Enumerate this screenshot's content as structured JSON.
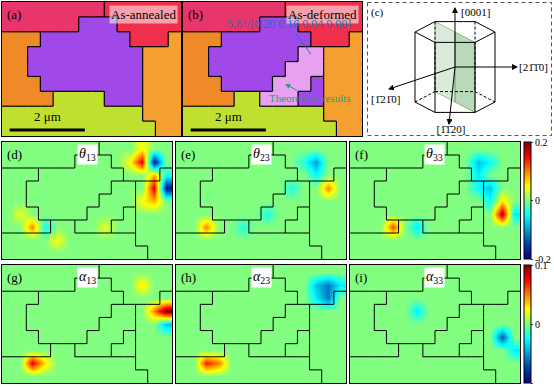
{
  "chart_data": [
    {
      "type": "map",
      "panel": "(a)",
      "title": "As-annealed",
      "tick_labels": false,
      "cell_size_um": 0.34,
      "colors": [
        "#e8366a",
        "#f0304a",
        "#f08a28",
        "#a048e8",
        "#c0e030",
        "#f4a030",
        "#e8a0f0"
      ],
      "grains": [
        [
          0,
          0,
          0,
          0,
          0,
          0,
          0,
          0,
          1,
          1,
          1,
          1,
          1,
          1
        ],
        [
          0,
          0,
          0,
          0,
          0,
          0,
          3,
          3,
          3,
          1,
          1,
          1,
          1,
          1
        ],
        [
          2,
          2,
          2,
          3,
          3,
          3,
          3,
          3,
          3,
          3,
          1,
          1,
          1,
          5
        ],
        [
          2,
          2,
          3,
          3,
          3,
          3,
          3,
          3,
          3,
          3,
          3,
          5,
          5,
          5
        ],
        [
          2,
          2,
          3,
          3,
          3,
          3,
          3,
          3,
          3,
          3,
          3,
          5,
          5,
          5
        ],
        [
          2,
          2,
          2,
          3,
          3,
          3,
          3,
          3,
          3,
          3,
          3,
          5,
          5,
          5
        ],
        [
          2,
          2,
          2,
          2,
          4,
          4,
          4,
          4,
          3,
          3,
          3,
          5,
          5,
          5
        ],
        [
          4,
          4,
          4,
          4,
          4,
          4,
          4,
          4,
          4,
          4,
          4,
          5,
          5,
          5
        ],
        [
          4,
          4,
          4,
          4,
          4,
          4,
          4,
          4,
          4,
          4,
          4,
          4,
          5,
          5
        ]
      ],
      "scale_bar": {
        "length": 2,
        "label": "2 μm"
      }
    },
    {
      "type": "map",
      "panel": "(b)",
      "title": "As-deformed",
      "tick_labels": false,
      "cell_size_um": 0.34,
      "colors": [
        "#e8366a",
        "#f0304a",
        "#f08a28",
        "#a048e8",
        "#c0e030",
        "#f4a030",
        "#e8a0f0"
      ],
      "grains": [
        [
          0,
          0,
          0,
          0,
          0,
          0,
          0,
          0,
          1,
          1,
          1,
          1,
          1,
          1
        ],
        [
          0,
          0,
          0,
          0,
          0,
          0,
          3,
          3,
          3,
          1,
          1,
          1,
          1,
          1
        ],
        [
          2,
          2,
          2,
          3,
          3,
          3,
          3,
          3,
          3,
          3,
          1,
          1,
          1,
          5
        ],
        [
          2,
          2,
          3,
          3,
          3,
          3,
          3,
          3,
          3,
          6,
          6,
          5,
          5,
          5
        ],
        [
          2,
          2,
          3,
          3,
          3,
          3,
          3,
          3,
          6,
          6,
          6,
          5,
          5,
          5
        ],
        [
          2,
          2,
          2,
          3,
          3,
          3,
          3,
          6,
          6,
          6,
          3,
          5,
          5,
          5
        ],
        [
          2,
          2,
          2,
          2,
          4,
          4,
          6,
          6,
          6,
          3,
          3,
          5,
          5,
          5
        ],
        [
          4,
          4,
          4,
          4,
          4,
          4,
          4,
          4,
          4,
          4,
          4,
          5,
          5,
          5
        ],
        [
          4,
          4,
          4,
          4,
          4,
          4,
          4,
          4,
          4,
          4,
          4,
          4,
          5,
          5
        ]
      ],
      "scale_bar": {
        "length": 2,
        "label": "2 μm"
      },
      "annotations": [
        "5.6°/[0.20 0.16 0.04 0.00]",
        "Theoretical results"
      ]
    },
    {
      "type": "diagram",
      "panel": "(c)",
      "directions": [
        "[0001]",
        "[21̄1̄0]",
        "[1̄21̄0]",
        "[1̄1̄20]"
      ]
    },
    {
      "type": "heatmap",
      "panel": "(d)",
      "symbol": "θ",
      "index": "13",
      "tick_labels": false,
      "zlim": [
        -0.2,
        0.2
      ],
      "zticks": [
        0.2,
        0,
        -0.2
      ],
      "z": [
        [
          0,
          0,
          0,
          0,
          0,
          0,
          0,
          0,
          0,
          0,
          0,
          0.05,
          0,
          0
        ],
        [
          0,
          0,
          0,
          0,
          0,
          0,
          0,
          0,
          0,
          0,
          0.05,
          0.16,
          -0.18,
          0
        ],
        [
          0,
          0,
          0,
          0,
          0,
          0,
          0,
          0,
          0,
          0,
          0,
          0,
          0.08,
          -0.04
        ],
        [
          0,
          0,
          0,
          0,
          0,
          0,
          0,
          0,
          0,
          0,
          0,
          0,
          0.16,
          -0.18
        ],
        [
          0,
          0,
          0,
          0,
          0,
          0,
          0,
          0,
          0,
          0,
          0,
          0.05,
          0.08,
          0
        ],
        [
          0,
          0.04,
          0,
          0,
          0,
          0,
          0,
          0,
          0,
          0,
          0,
          0,
          0,
          0
        ],
        [
          0,
          0,
          0.1,
          -0.05,
          0,
          0,
          0,
          0,
          0.04,
          0,
          0,
          0,
          0,
          0
        ],
        [
          0,
          0,
          0,
          0,
          0.05,
          0,
          0,
          0,
          0,
          0,
          0,
          0,
          0,
          0
        ],
        [
          0,
          0,
          0,
          0,
          0,
          0,
          0,
          0,
          0,
          0,
          0,
          0,
          0,
          0
        ]
      ]
    },
    {
      "type": "heatmap",
      "panel": "(e)",
      "symbol": "θ",
      "index": "23",
      "tick_labels": false,
      "zlim": [
        -0.2,
        0.2
      ],
      "zticks": [
        0.2,
        0,
        -0.2
      ],
      "z": [
        [
          0,
          0,
          0,
          0,
          0,
          0,
          0,
          0,
          0,
          0,
          0,
          0,
          0,
          0
        ],
        [
          0,
          0,
          0,
          0,
          0,
          0,
          0,
          0,
          0,
          0,
          -0.04,
          -0.1,
          0,
          0
        ],
        [
          0,
          0,
          0,
          0,
          0,
          0,
          0,
          0,
          0,
          0,
          0,
          -0.05,
          0,
          0
        ],
        [
          0,
          0,
          0,
          0,
          0,
          0,
          0,
          0,
          0,
          -0.04,
          0,
          0,
          0.1,
          0
        ],
        [
          0,
          0,
          0,
          0,
          0,
          0,
          0,
          0,
          0,
          0,
          0,
          0,
          0,
          0
        ],
        [
          0,
          0,
          0,
          0,
          0,
          0,
          0,
          -0.04,
          0,
          0,
          0,
          0,
          0,
          0
        ],
        [
          0,
          0,
          0.1,
          0,
          0,
          -0.04,
          0,
          0,
          0,
          0,
          0,
          0,
          0,
          0
        ],
        [
          0,
          0,
          0,
          0,
          0,
          0,
          0,
          0,
          0,
          0,
          0,
          0,
          0,
          0
        ],
        [
          0,
          0,
          0,
          0,
          0,
          0,
          0,
          0,
          0,
          0,
          0,
          0,
          0,
          0
        ]
      ]
    },
    {
      "type": "heatmap",
      "panel": "(f)",
      "symbol": "θ",
      "index": "33",
      "tick_labels": false,
      "zlim": [
        -0.2,
        0.2
      ],
      "zticks": [
        0.2,
        0,
        -0.2
      ],
      "z": [
        [
          0,
          0,
          0,
          0,
          0,
          0,
          0,
          0,
          0,
          0,
          0,
          0,
          0,
          0
        ],
        [
          0,
          0,
          0,
          0,
          0,
          0,
          0,
          0,
          0,
          0,
          -0.08,
          -0.05,
          0,
          0
        ],
        [
          0,
          0,
          0,
          0,
          0,
          0,
          0,
          0,
          0,
          0,
          -0.06,
          0,
          0,
          0
        ],
        [
          0,
          0,
          0,
          0,
          0,
          0,
          0,
          0,
          0,
          0,
          -0.05,
          -0.08,
          0,
          0
        ],
        [
          0,
          0,
          0,
          0,
          0,
          0,
          0,
          0,
          0,
          0,
          0,
          -0.05,
          0.06,
          0
        ],
        [
          0,
          0,
          0,
          0,
          0,
          0,
          0,
          0,
          0,
          0,
          0,
          0,
          0.18,
          -0.06
        ],
        [
          0,
          0,
          0,
          0.12,
          0,
          -0.06,
          0,
          0,
          0,
          0,
          0,
          0,
          0,
          0
        ],
        [
          0,
          0,
          0,
          0,
          0,
          0,
          0,
          0,
          0,
          0,
          0,
          0,
          0,
          0
        ],
        [
          0,
          0,
          0,
          0,
          0,
          0,
          0,
          0,
          0,
          0,
          0,
          0,
          0,
          0
        ]
      ]
    },
    {
      "type": "heatmap",
      "panel": "(g)",
      "symbol": "α",
      "index": "13",
      "tick_labels": false,
      "zlim": [
        -0.1,
        0.1
      ],
      "zticks": [
        0.1,
        0,
        -0.1
      ],
      "z": [
        [
          0,
          0,
          0,
          0,
          0,
          0,
          0,
          0,
          0,
          0,
          0,
          0,
          0,
          0
        ],
        [
          0,
          0,
          0,
          0,
          0,
          0,
          0,
          0,
          0,
          0,
          0,
          0.03,
          0,
          0
        ],
        [
          0,
          0,
          0,
          0,
          0,
          0,
          0,
          0,
          0,
          0,
          0,
          0,
          0,
          0
        ],
        [
          0,
          0,
          0,
          0,
          0,
          0,
          0,
          0,
          0,
          0,
          0,
          0,
          0.05,
          0.1
        ],
        [
          0,
          0,
          0,
          0,
          0,
          0,
          0,
          0,
          0,
          0,
          0,
          0,
          0,
          -0.04
        ],
        [
          0,
          0,
          0,
          0,
          0,
          0,
          0,
          0,
          0,
          0,
          0,
          0,
          0,
          0
        ],
        [
          0,
          0,
          0,
          0,
          0,
          0,
          0,
          0,
          0,
          0,
          0,
          0,
          0,
          0
        ],
        [
          0,
          0,
          0.08,
          0.03,
          0,
          0,
          0,
          0,
          0,
          0,
          0,
          0,
          0,
          0
        ],
        [
          0,
          0,
          0,
          0,
          0,
          0,
          0,
          0,
          0,
          0,
          0,
          0,
          0,
          0
        ]
      ]
    },
    {
      "type": "heatmap",
      "panel": "(h)",
      "symbol": "α",
      "index": "23",
      "tick_labels": false,
      "zlim": [
        -0.1,
        0.1
      ],
      "zticks": [
        0.1,
        0,
        -0.1
      ],
      "z": [
        [
          0,
          0,
          0,
          0,
          0,
          0,
          0,
          0,
          0,
          0,
          0,
          0,
          0,
          0
        ],
        [
          0,
          0,
          0,
          0,
          0,
          0,
          0,
          0,
          0,
          0,
          0,
          -0.04,
          -0.06,
          -0.03
        ],
        [
          0,
          0,
          0,
          0,
          0,
          0,
          0,
          0,
          0,
          0,
          0,
          -0.03,
          -0.06,
          0
        ],
        [
          0,
          0,
          0,
          0,
          0,
          0,
          0,
          0,
          0,
          0,
          0,
          0,
          0,
          0
        ],
        [
          0,
          0,
          0,
          0,
          0,
          0,
          0,
          0,
          0,
          0,
          0,
          0,
          0,
          0
        ],
        [
          0,
          0,
          0,
          0,
          0,
          0,
          0,
          0,
          0,
          0,
          0,
          0,
          0,
          0
        ],
        [
          0,
          0,
          0,
          0,
          0,
          0,
          0,
          0,
          0,
          0,
          0,
          0,
          0,
          0
        ],
        [
          0,
          0,
          0.07,
          0.05,
          0,
          0,
          0,
          0,
          0,
          0,
          0,
          0,
          0,
          0
        ],
        [
          0,
          0,
          0,
          0,
          0,
          0,
          0,
          0,
          0,
          0,
          0,
          0,
          0,
          0
        ]
      ]
    },
    {
      "type": "heatmap",
      "panel": "(i)",
      "symbol": "α",
      "index": "33",
      "tick_labels": false,
      "zlim": [
        -0.1,
        0.1
      ],
      "zticks": [
        0.1,
        0,
        -0.1
      ],
      "z": [
        [
          0,
          0,
          0,
          0,
          0,
          0,
          0,
          0,
          0,
          0,
          0,
          0,
          0,
          0
        ],
        [
          0,
          0,
          0,
          0,
          0,
          0,
          0,
          0,
          0,
          0,
          0,
          0,
          0,
          0
        ],
        [
          0,
          0,
          0,
          0,
          0,
          0,
          0,
          0,
          0,
          0,
          0,
          0,
          0,
          0
        ],
        [
          0,
          0,
          0,
          0,
          0,
          -0.03,
          0,
          0,
          0,
          0,
          0,
          0,
          0,
          0
        ],
        [
          0,
          0,
          0,
          0,
          0,
          0,
          0,
          0,
          0,
          0,
          0,
          0,
          0,
          0
        ],
        [
          0,
          0,
          0,
          0,
          0,
          0,
          0,
          0,
          0,
          0,
          0,
          0,
          -0.07,
          0
        ],
        [
          0,
          0,
          0,
          0,
          0,
          0,
          0,
          0,
          0,
          0,
          0,
          0,
          0,
          -0.03
        ],
        [
          0,
          0,
          0,
          0,
          0,
          0,
          0,
          0,
          0,
          0,
          0,
          0,
          0,
          0
        ],
        [
          0,
          0,
          0,
          0,
          0,
          0,
          0,
          0,
          0,
          0,
          0,
          0,
          0,
          0
        ]
      ]
    }
  ]
}
